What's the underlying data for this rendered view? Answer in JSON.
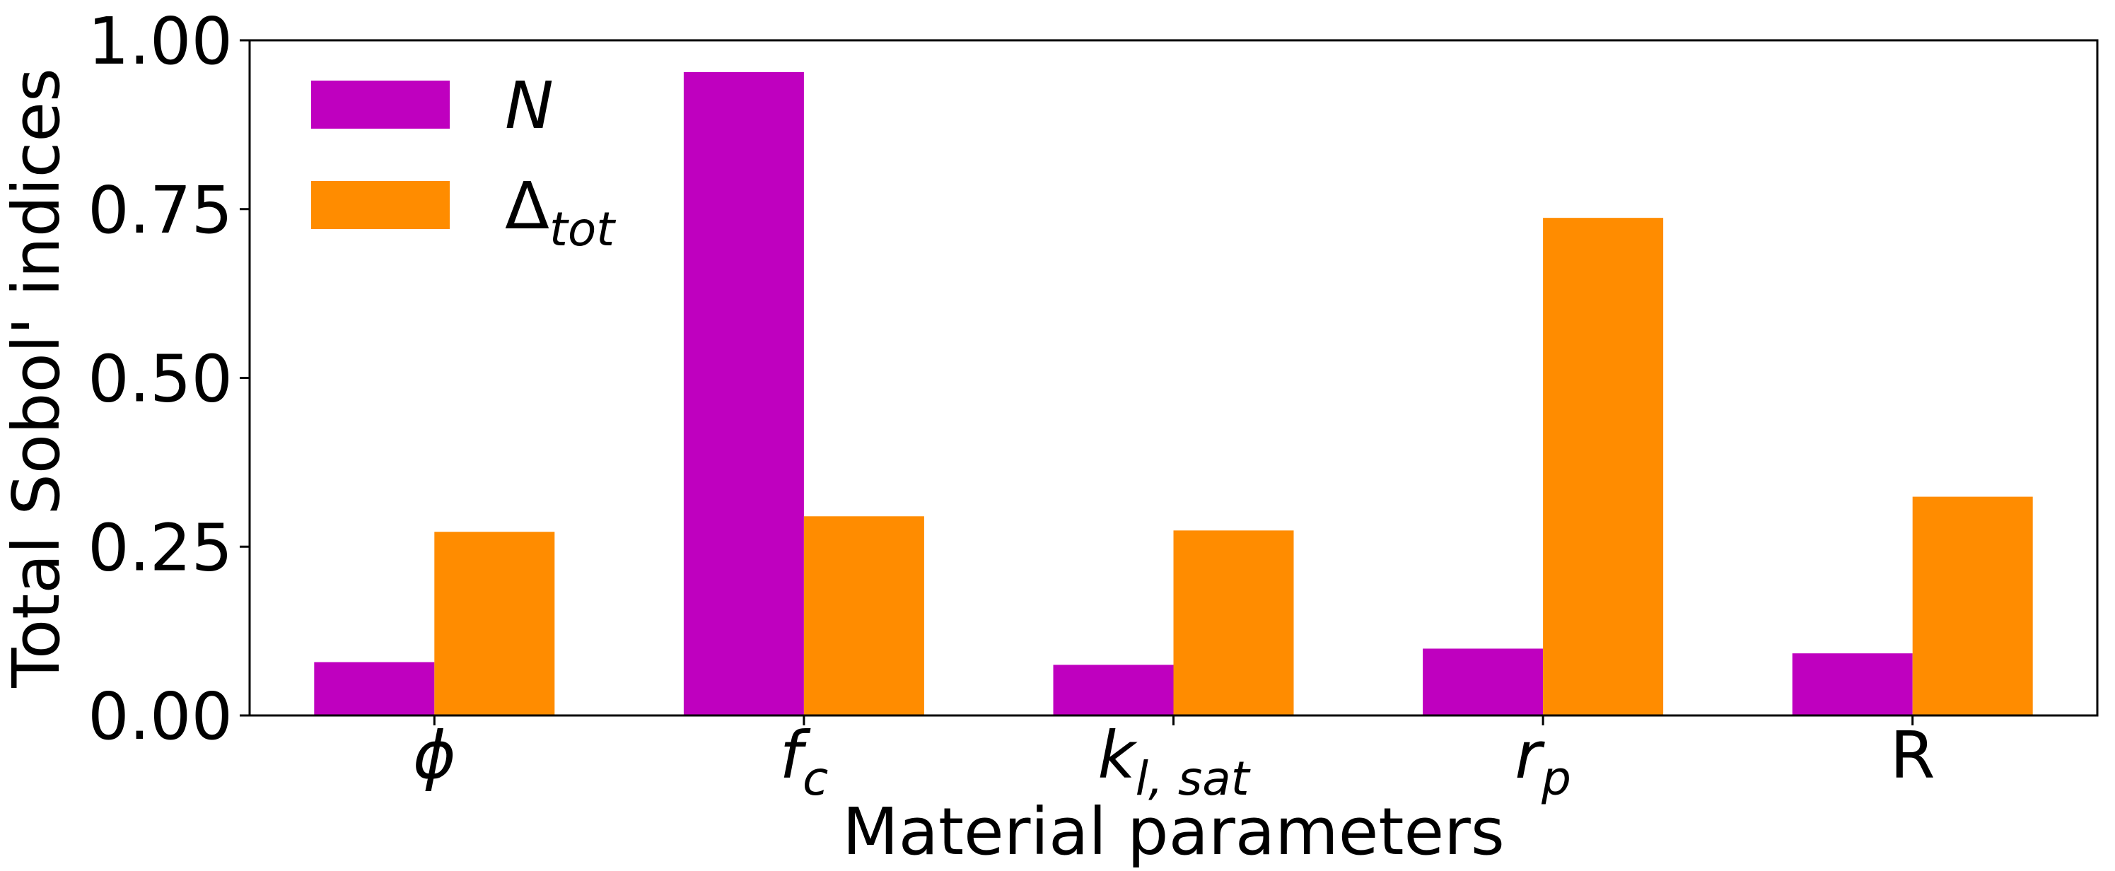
{
  "chart_data": {
    "type": "bar",
    "xlabel": "Material parameters",
    "ylabel": "Total Sobol' indices",
    "ylim": [
      0,
      1
    ],
    "yticks": [
      "0.00",
      "0.25",
      "0.50",
      "0.75",
      "1.00"
    ],
    "categories": [
      {
        "base": "ϕ",
        "sub": "",
        "italic": true
      },
      {
        "base": "f",
        "sub": "c",
        "italic": true
      },
      {
        "base": "k",
        "sub": "l, sat",
        "italic": true
      },
      {
        "base": "r",
        "sub": "p",
        "italic": true
      },
      {
        "base": "R",
        "sub": "",
        "italic": false
      }
    ],
    "series": [
      {
        "name": "N",
        "name_base": "N",
        "name_sub": "",
        "color": "#bf00bf",
        "values": [
          0.079,
          0.953,
          0.075,
          0.099,
          0.092
        ]
      },
      {
        "name": "Δtot",
        "name_base": "Δ",
        "name_sub": "tot",
        "color": "#ff8c00",
        "values": [
          0.272,
          0.295,
          0.274,
          0.737,
          0.324
        ]
      }
    ],
    "legend_position": "top-left",
    "grid": false
  }
}
